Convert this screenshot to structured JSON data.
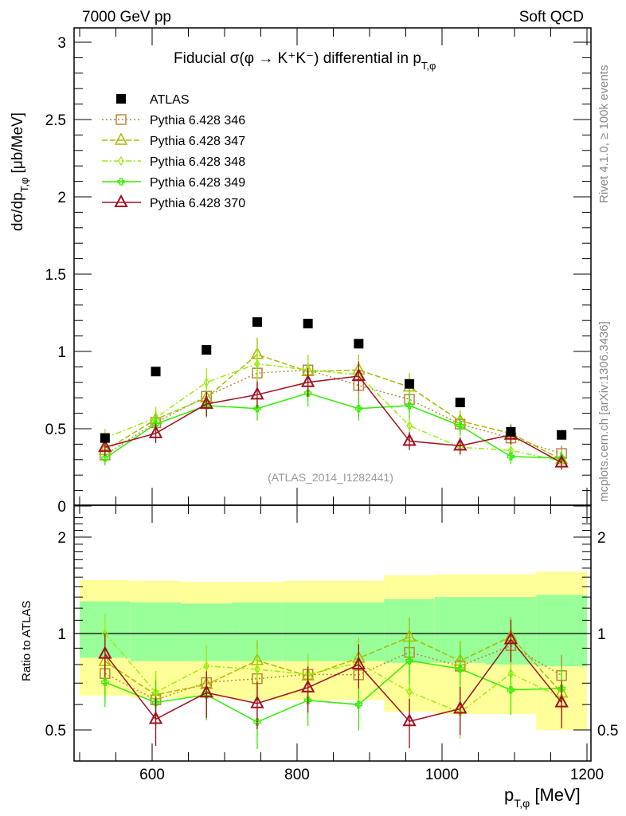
{
  "header": {
    "left": "7000 GeV pp",
    "right": "Soft QCD"
  },
  "side_text": {
    "rivet": "Rivet 4.1.0, ≥ 100k events",
    "mcplots": "mcplots.cern.ch [arXiv:1306.3436]"
  },
  "watermark": "(ATLAS_2014_I1282441)",
  "chart_data": {
    "type": "scatter",
    "title": {
      "main": "Fiducial σ(φ →  K⁺K⁻) differential in p",
      "sub": "T,φ"
    },
    "ylabel": {
      "main": "dσ/dp",
      "sub": "T,φ",
      "unit": " [μb/MeV]"
    },
    "xlabel": {
      "main": "p",
      "sub": "T,φ",
      "unit": " [MeV]"
    },
    "ratio_ylabel": "Ratio to ATLAS",
    "xlim": [
      485,
      1205
    ],
    "ylim": [
      0,
      3.1
    ],
    "ratio_ylim": [
      0.42,
      2.4
    ],
    "x_ticks": [
      600,
      800,
      1000,
      1200
    ],
    "y_ticks": [
      0,
      0.5,
      1,
      1.5,
      2,
      2.5,
      3
    ],
    "ratio_ticks": [
      0.5,
      1,
      2
    ],
    "x": [
      535,
      605,
      675,
      745,
      815,
      885,
      955,
      1025,
      1095,
      1165
    ],
    "bin_edges": [
      500,
      570,
      640,
      710,
      780,
      850,
      920,
      990,
      1060,
      1130,
      1200
    ],
    "data": {
      "name": "ATLAS",
      "color": "#000000",
      "values": [
        0.44,
        0.87,
        1.01,
        1.19,
        1.18,
        1.05,
        0.79,
        0.67,
        0.48,
        0.46
      ]
    },
    "bands": {
      "stat": {
        "color": "#99ff99",
        "lo": [
          0.84,
          0.82,
          0.82,
          0.82,
          0.82,
          0.82,
          0.81,
          0.81,
          0.8,
          0.79
        ],
        "hi": [
          1.26,
          1.25,
          1.24,
          1.25,
          1.25,
          1.25,
          1.28,
          1.3,
          1.3,
          1.32
        ]
      },
      "total": {
        "color": "#ffff99",
        "lo": [
          0.64,
          0.63,
          0.63,
          0.62,
          0.62,
          0.62,
          0.57,
          0.56,
          0.56,
          0.5
        ],
        "hi": [
          1.47,
          1.46,
          1.45,
          1.45,
          1.46,
          1.46,
          1.52,
          1.53,
          1.53,
          1.56
        ]
      }
    },
    "series": [
      {
        "name": "Pythia 6.428 346",
        "color": "#b8863b",
        "marker": "square",
        "dash": "2,3",
        "values": [
          0.33,
          0.54,
          0.71,
          0.86,
          0.88,
          0.78,
          0.69,
          0.53,
          0.44,
          0.34
        ]
      },
      {
        "name": "Pythia 6.428 347",
        "color": "#aabb00",
        "marker": "triangle",
        "dash": "7,3",
        "values": [
          0.36,
          0.56,
          0.7,
          0.98,
          0.87,
          0.88,
          0.77,
          0.55,
          0.47,
          0.3
        ]
      },
      {
        "name": "Pythia 6.428 348",
        "color": "#99ee11",
        "marker": "diamond",
        "dash": "7,3,2,3",
        "values": [
          0.44,
          0.57,
          0.8,
          0.92,
          0.88,
          0.85,
          0.52,
          0.38,
          0.36,
          0.29
        ]
      },
      {
        "name": "Pythia 6.428 349",
        "color": "#33ee00",
        "marker": "cross",
        "dash": "",
        "values": [
          0.31,
          0.53,
          0.65,
          0.63,
          0.73,
          0.63,
          0.65,
          0.52,
          0.32,
          0.31
        ]
      },
      {
        "name": "Pythia 6.428 370",
        "color": "#a01020",
        "marker": "triangle-open",
        "dash": "",
        "values": [
          0.38,
          0.47,
          0.66,
          0.72,
          0.8,
          0.84,
          0.42,
          0.39,
          0.46,
          0.28
        ]
      }
    ]
  }
}
